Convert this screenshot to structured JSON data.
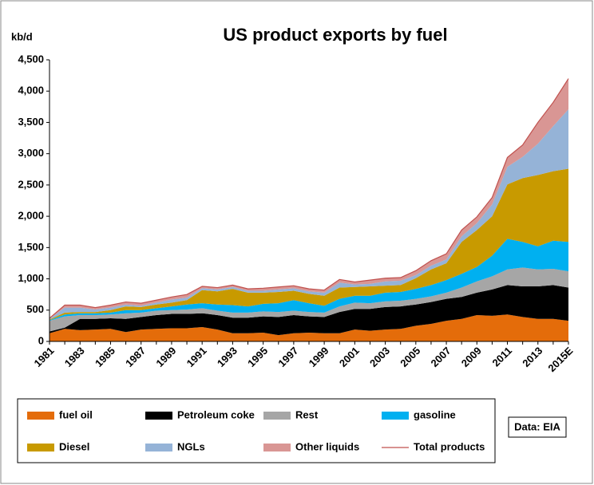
{
  "chart_data": {
    "type": "stacked_area",
    "title": "US product exports by fuel",
    "y_label": "kb/d",
    "source": "Data: EIA",
    "categories": [
      "1981",
      null,
      "1983",
      null,
      "1985",
      null,
      "1987",
      null,
      "1989",
      null,
      "1991",
      null,
      "1993",
      null,
      "1995",
      null,
      "1997",
      null,
      "1999",
      null,
      "2001",
      null,
      "2003",
      null,
      "2005",
      null,
      "2007",
      null,
      "2009",
      null,
      "2011",
      null,
      "2013",
      null,
      "2015E"
    ],
    "series": [
      {
        "name": "fuel oil",
        "color": "#e46c0a",
        "values": [
          130,
          200,
          180,
          190,
          200,
          150,
          190,
          200,
          210,
          210,
          230,
          190,
          130,
          130,
          140,
          100,
          130,
          140,
          130,
          130,
          190,
          170,
          190,
          200,
          250,
          280,
          330,
          360,
          420,
          410,
          430,
          390,
          360,
          360,
          330
        ]
      },
      {
        "name": "Petroleum coke",
        "color": "#000000",
        "values": [
          30,
          20,
          180,
          170,
          170,
          210,
          200,
          220,
          230,
          230,
          220,
          230,
          250,
          250,
          260,
          290,
          290,
          260,
          260,
          340,
          330,
          350,
          360,
          360,
          340,
          350,
          350,
          350,
          360,
          420,
          470,
          490,
          520,
          540,
          530
        ]
      },
      {
        "name": "Rest",
        "color": "#a6a6a6",
        "values": [
          170,
          180,
          60,
          60,
          60,
          90,
          70,
          70,
          60,
          70,
          80,
          70,
          80,
          80,
          80,
          80,
          70,
          70,
          70,
          90,
          100,
          90,
          90,
          90,
          90,
          90,
          100,
          150,
          180,
          210,
          250,
          300,
          270,
          260,
          260
        ]
      },
      {
        "name": "gasoline",
        "color": "#00b0f0",
        "values": [
          10,
          30,
          30,
          30,
          30,
          50,
          40,
          40,
          60,
          80,
          80,
          100,
          120,
          100,
          120,
          140,
          170,
          140,
          110,
          120,
          110,
          120,
          140,
          140,
          160,
          180,
          200,
          220,
          230,
          330,
          490,
          410,
          370,
          450,
          470
        ]
      },
      {
        "name": "Diesel",
        "color": "#c89a00",
        "values": [
          10,
          30,
          20,
          20,
          40,
          60,
          50,
          60,
          60,
          70,
          210,
          210,
          260,
          220,
          180,
          180,
          150,
          150,
          160,
          180,
          140,
          150,
          110,
          110,
          170,
          250,
          270,
          510,
          590,
          630,
          870,
          1020,
          1140,
          1110,
          1170
        ]
      },
      {
        "name": "NGLs",
        "color": "#95b3d7",
        "values": [
          10,
          80,
          70,
          40,
          40,
          30,
          20,
          30,
          50,
          40,
          30,
          30,
          30,
          30,
          30,
          40,
          40,
          40,
          50,
          80,
          40,
          40,
          70,
          70,
          50,
          60,
          60,
          90,
          110,
          190,
          280,
          340,
          500,
          720,
          950
        ]
      },
      {
        "name": "Other liquids",
        "color": "#d99694",
        "values": [
          10,
          40,
          40,
          30,
          40,
          40,
          40,
          40,
          40,
          50,
          30,
          30,
          30,
          30,
          40,
          40,
          40,
          40,
          40,
          50,
          40,
          60,
          50,
          50,
          70,
          80,
          90,
          100,
          100,
          110,
          150,
          190,
          340,
          380,
          490
        ]
      },
      {
        "name": "Total products",
        "color": "#c0504d",
        "type": "line",
        "values": [
          370,
          580,
          580,
          540,
          580,
          630,
          610,
          660,
          710,
          750,
          880,
          860,
          900,
          840,
          850,
          870,
          890,
          840,
          820,
          990,
          950,
          980,
          1010,
          1020,
          1130,
          1290,
          1400,
          1780,
          1990,
          2300,
          2940,
          3140,
          3500,
          3820,
          4200
        ]
      }
    ],
    "ylim": [
      0,
      4500
    ],
    "yticks": [
      0,
      500,
      {
        "value": 1000,
        "label": "1,000"
      },
      {
        "value": 1500,
        "label": "1,500"
      },
      {
        "value": 2000,
        "label": "2,000"
      },
      {
        "value": 2500,
        "label": "2,500"
      },
      {
        "value": 3000,
        "label": "3,000"
      },
      {
        "value": 3500,
        "label": "3,500"
      },
      {
        "value": 4000,
        "label": "4,000"
      },
      {
        "value": 4500,
        "label": "4,500"
      }
    ],
    "grid": false,
    "legend": "bottom"
  }
}
